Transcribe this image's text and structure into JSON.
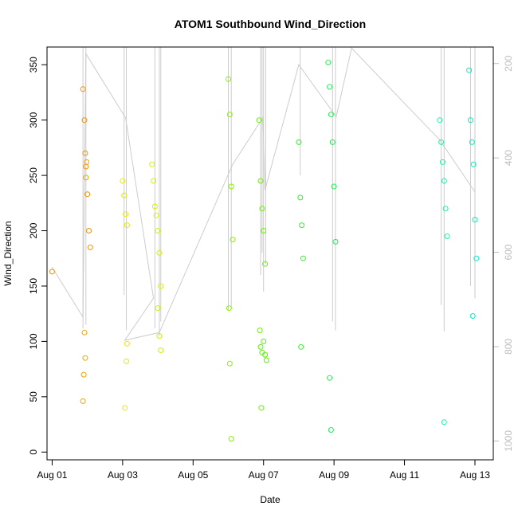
{
  "chart_data": {
    "type": "scatter",
    "title": "ATOM1 Southbound Wind_Direction",
    "xlabel": "Date",
    "ylabel": "Wind_Direction",
    "x_is_date": true,
    "xlim": [
      "2022-07-31T20:30",
      "2022-08-13T12:30"
    ],
    "ylim": [
      -7,
      366
    ],
    "x_ticks": [
      {
        "label": "Aug 01",
        "value": "2022-08-01"
      },
      {
        "label": "Aug 03",
        "value": "2022-08-03"
      },
      {
        "label": "Aug 05",
        "value": "2022-08-05"
      },
      {
        "label": "Aug 07",
        "value": "2022-08-07"
      },
      {
        "label": "Aug 09",
        "value": "2022-08-09"
      },
      {
        "label": "Aug 11",
        "value": "2022-08-11"
      },
      {
        "label": "Aug 13",
        "value": "2022-08-13"
      }
    ],
    "y_ticks": [
      0,
      50,
      100,
      150,
      200,
      250,
      300,
      350
    ],
    "right_axis": {
      "color": "#bdbdbd",
      "ylim": [
        165,
        1040
      ],
      "reversed": true,
      "ticks": [
        200,
        400,
        600,
        800,
        1000
      ]
    },
    "grid": false,
    "point_colors": [
      "#ff8c00",
      "#ffd700",
      "#ccff00",
      "#55ff00",
      "#33ff66",
      "#00ffc0"
    ],
    "series": [
      {
        "color": "#f0900a",
        "x": [
          "2022-08-01T00:00",
          "2022-08-01T21:00",
          "2022-08-01T22:00",
          "2022-08-01T22:30",
          "2022-08-01T23:00",
          "2022-08-02T00:00",
          "2022-08-02T01:00",
          "2022-08-02T02:00"
        ],
        "y": [
          163,
          328,
          300,
          270,
          258,
          233,
          200,
          185
        ]
      },
      {
        "color": "#f5a000",
        "x": [
          "2022-08-01T21:00",
          "2022-08-01T21:30",
          "2022-08-01T22:00",
          "2022-08-01T22:30",
          "2022-08-01T23:00",
          "2022-08-01T23:30"
        ],
        "y": [
          46,
          70,
          108,
          85,
          248,
          262
        ]
      },
      {
        "color": "#e9e900",
        "x": [
          "2022-08-03T00:00",
          "2022-08-03T01:00",
          "2022-08-03T02:00",
          "2022-08-03T03:00",
          "2022-08-03T02:30",
          "2022-08-03T03:00",
          "2022-08-03T01:30"
        ],
        "y": [
          245,
          232,
          215,
          205,
          82,
          98,
          40
        ]
      },
      {
        "color": "#d9f000",
        "x": [
          "2022-08-03T20:00",
          "2022-08-03T21:00",
          "2022-08-03T22:00",
          "2022-08-03T23:00",
          "2022-08-04T00:00",
          "2022-08-04T01:00",
          "2022-08-04T02:00"
        ],
        "y": [
          260,
          245,
          222,
          214,
          200,
          180,
          150
        ]
      },
      {
        "color": "#ccf000",
        "x": [
          "2022-08-04T00:00",
          "2022-08-04T01:00",
          "2022-08-04T02:00"
        ],
        "y": [
          130,
          105,
          92
        ]
      },
      {
        "color": "#88f000",
        "x": [
          "2022-08-06T00:00",
          "2022-08-06T01:00",
          "2022-08-06T02:00",
          "2022-08-06T03:00",
          "2022-08-06T00:30",
          "2022-08-06T01:00",
          "2022-08-06T02:00"
        ],
        "y": [
          337,
          305,
          240,
          192,
          130,
          80,
          12
        ]
      },
      {
        "color": "#66f000",
        "x": [
          "2022-08-06T21:00",
          "2022-08-06T22:00",
          "2022-08-06T23:00",
          "2022-08-07T00:00",
          "2022-08-07T01:00",
          "2022-08-06T21:30",
          "2022-08-06T22:30"
        ],
        "y": [
          300,
          245,
          220,
          200,
          170,
          110,
          40
        ]
      },
      {
        "color": "#55f000",
        "x": [
          "2022-08-06T22:00",
          "2022-08-06T23:00",
          "2022-08-07T00:00",
          "2022-08-07T01:00",
          "2022-08-07T02:00"
        ],
        "y": [
          95,
          90,
          100,
          88,
          83
        ]
      },
      {
        "color": "#33ee33",
        "x": [
          "2022-08-08T00:00",
          "2022-08-08T01:00",
          "2022-08-08T02:00",
          "2022-08-08T03:00",
          "2022-08-08T01:30"
        ],
        "y": [
          280,
          230,
          205,
          175,
          95
        ]
      },
      {
        "color": "#22ee55",
        "x": [
          "2022-08-08T20:00",
          "2022-08-08T21:00",
          "2022-08-08T22:00",
          "2022-08-08T23:00",
          "2022-08-09T00:00",
          "2022-08-09T01:00",
          "2022-08-08T21:00",
          "2022-08-08T22:00"
        ],
        "y": [
          352,
          330,
          305,
          280,
          240,
          190,
          67,
          20
        ]
      },
      {
        "color": "#22eeaa",
        "x": [
          "2022-08-12T00:00",
          "2022-08-12T01:00",
          "2022-08-12T02:00",
          "2022-08-12T03:00",
          "2022-08-12T04:00",
          "2022-08-12T05:00",
          "2022-08-12T03:00"
        ],
        "y": [
          300,
          280,
          262,
          245,
          220,
          195,
          27
        ]
      },
      {
        "color": "#00eec0",
        "x": [
          "2022-08-12T20:00",
          "2022-08-12T21:00",
          "2022-08-12T22:00",
          "2022-08-12T23:00",
          "2022-08-13T00:00",
          "2022-08-13T01:00",
          "2022-08-12T22:30"
        ],
        "y": [
          345,
          300,
          280,
          260,
          210,
          175,
          123
        ]
      }
    ]
  }
}
